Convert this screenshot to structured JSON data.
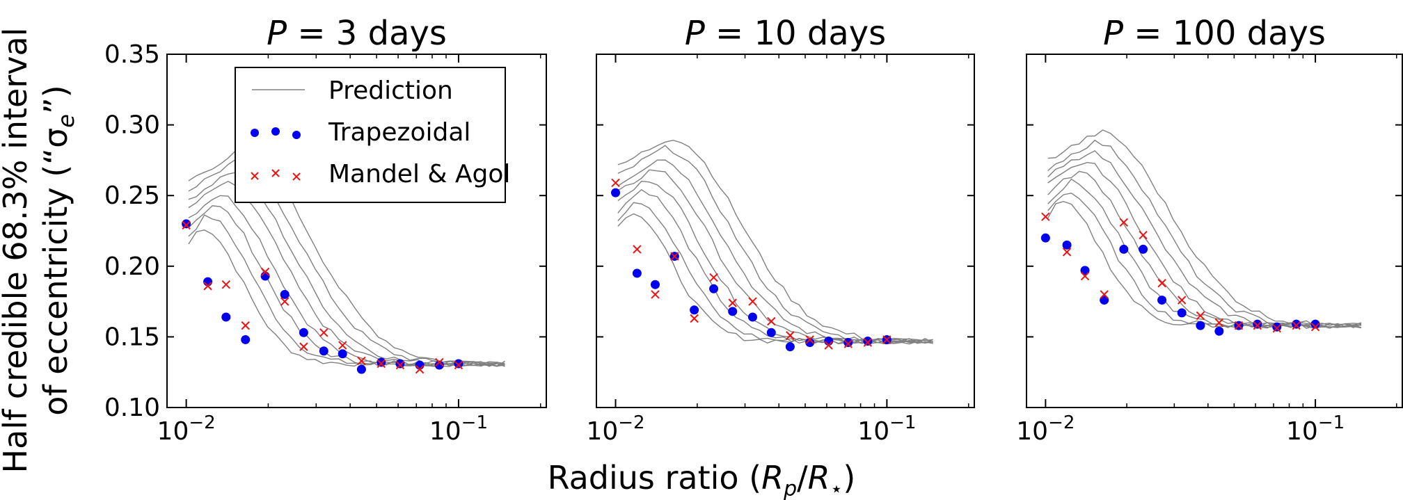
{
  "figure": {
    "ylabel_line1": "Half credible 68.3% interval",
    "ylabel_line2": "of eccentricity (“σ",
    "ylabel_sub": "e",
    "ylabel_close": "”)",
    "xlabel_prefix": "Radius ratio (",
    "xlabel_R1": "R",
    "xlabel_sub1": "p",
    "xlabel_slash": "/",
    "xlabel_R2": "R",
    "xlabel_sub2": "⋆",
    "xlabel_suffix": ")"
  },
  "legend": {
    "prediction": "Prediction",
    "trapezoidal": "Trapezoidal",
    "mandel": "Mandel & Agol"
  },
  "colors": {
    "prediction": "#808080",
    "trapezoidal": "#0000ee",
    "mandel": "#ee1111"
  },
  "chart_data": [
    {
      "type": "scatter",
      "title_var": "P",
      "title_rest": " = 3 days",
      "xscale": "log",
      "xlim": [
        0.0085,
        0.21
      ],
      "ylim": [
        0.1,
        0.35
      ],
      "yticks": [
        "0.10",
        "0.15",
        "0.20",
        "0.25",
        "0.30",
        "0.35"
      ],
      "xticks": [
        {
          "base": "10",
          "exp": "−2",
          "value": 0.01
        },
        {
          "base": "10",
          "exp": "−1",
          "value": 0.1
        }
      ],
      "x": [
        0.01,
        0.012,
        0.014,
        0.0165,
        0.0195,
        0.023,
        0.027,
        0.032,
        0.0375,
        0.044,
        0.052,
        0.061,
        0.072,
        0.085,
        0.1
      ],
      "series": [
        {
          "name": "Trapezoidal",
          "marker": "circle",
          "values": [
            0.23,
            0.189,
            0.164,
            0.148,
            0.193,
            0.18,
            0.153,
            0.14,
            0.138,
            0.127,
            0.132,
            0.131,
            0.13,
            0.13,
            0.131
          ]
        },
        {
          "name": "Mandel & Agol",
          "marker": "x",
          "values": [
            0.229,
            0.186,
            0.187,
            0.158,
            0.196,
            0.175,
            0.143,
            0.153,
            0.144,
            0.133,
            0.131,
            0.13,
            0.127,
            0.132,
            0.13
          ]
        }
      ],
      "prediction_peak": 0.26,
      "prediction_floor": 0.131
    },
    {
      "type": "scatter",
      "title_var": "P",
      "title_rest": " = 10 days",
      "xscale": "log",
      "xlim": [
        0.0085,
        0.21
      ],
      "ylim": [
        0.1,
        0.35
      ],
      "yticks": [
        "0.10",
        "0.15",
        "0.20",
        "0.25",
        "0.30",
        "0.35"
      ],
      "xticks": [
        {
          "base": "10",
          "exp": "−2",
          "value": 0.01
        },
        {
          "base": "10",
          "exp": "−1",
          "value": 0.1
        }
      ],
      "x": [
        0.01,
        0.012,
        0.014,
        0.0165,
        0.0195,
        0.023,
        0.027,
        0.032,
        0.0375,
        0.044,
        0.052,
        0.061,
        0.072,
        0.085,
        0.1
      ],
      "series": [
        {
          "name": "Trapezoidal",
          "marker": "circle",
          "values": [
            0.252,
            0.195,
            0.187,
            0.207,
            0.169,
            0.184,
            0.168,
            0.164,
            0.153,
            0.143,
            0.146,
            0.147,
            0.146,
            0.147,
            0.148
          ]
        },
        {
          "name": "Mandel & Agol",
          "marker": "x",
          "values": [
            0.259,
            0.212,
            0.18,
            0.207,
            0.163,
            0.192,
            0.174,
            0.175,
            0.161,
            0.151,
            0.148,
            0.144,
            0.145,
            0.146,
            0.148
          ]
        }
      ],
      "prediction_peak": 0.27,
      "prediction_floor": 0.147
    },
    {
      "type": "scatter",
      "title_var": "P",
      "title_rest": " = 100 days",
      "xscale": "log",
      "xlim": [
        0.0085,
        0.21
      ],
      "ylim": [
        0.1,
        0.35
      ],
      "yticks": [
        "0.10",
        "0.15",
        "0.20",
        "0.25",
        "0.30",
        "0.35"
      ],
      "xticks": [
        {
          "base": "10",
          "exp": "−2",
          "value": 0.01
        },
        {
          "base": "10",
          "exp": "−1",
          "value": 0.1
        }
      ],
      "x": [
        0.01,
        0.012,
        0.014,
        0.0165,
        0.0195,
        0.023,
        0.027,
        0.032,
        0.0375,
        0.044,
        0.052,
        0.061,
        0.072,
        0.085,
        0.1
      ],
      "series": [
        {
          "name": "Trapezoidal",
          "marker": "circle",
          "values": [
            0.22,
            0.215,
            0.197,
            0.176,
            0.212,
            0.212,
            0.176,
            0.167,
            0.158,
            0.154,
            0.158,
            0.159,
            0.157,
            0.159,
            0.159
          ]
        },
        {
          "name": "Mandel & Agol",
          "marker": "x",
          "values": [
            0.235,
            0.21,
            0.193,
            0.18,
            0.231,
            0.222,
            0.188,
            0.176,
            0.165,
            0.16,
            0.158,
            0.158,
            0.156,
            0.158,
            0.157
          ]
        }
      ],
      "prediction_peak": 0.275,
      "prediction_floor": 0.158
    }
  ]
}
